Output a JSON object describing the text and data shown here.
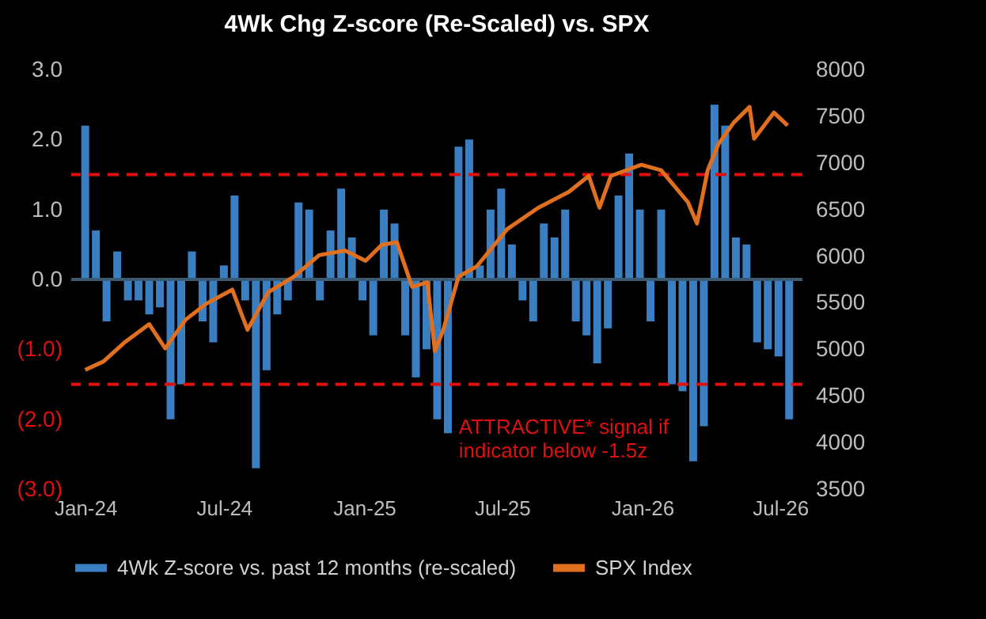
{
  "chart_data": {
    "type": "bar",
    "title": "4Wk Chg Z-score (Re-Scaled) vs. SPX",
    "xlim": [
      "2023-12-24",
      "2026-07-20"
    ],
    "xticks": [
      {
        "value": "2024-01-01",
        "label": "Jan-24"
      },
      {
        "value": "2024-07-01",
        "label": "Jul-24"
      },
      {
        "value": "2025-01-01",
        "label": "Jan-25"
      },
      {
        "value": "2025-07-01",
        "label": "Jul-25"
      },
      {
        "value": "2026-01-01",
        "label": "Jan-26"
      },
      {
        "value": "2026-07-01",
        "label": "Jul-26"
      }
    ],
    "ylim": [
      -3,
      3
    ],
    "yticks": [
      {
        "value": 3,
        "label": "3.0"
      },
      {
        "value": 2,
        "label": "2.0"
      },
      {
        "value": 1,
        "label": "1.0"
      },
      {
        "value": 0,
        "label": "0.0"
      },
      {
        "value": -1,
        "label": "(1.0)"
      },
      {
        "value": -2,
        "label": "(2.0)"
      },
      {
        "value": -3,
        "label": "(3.0)"
      }
    ],
    "y2lim": [
      3500,
      8000
    ],
    "y2ticks": [
      3500,
      4000,
      4500,
      5000,
      5500,
      6000,
      6500,
      7000,
      7500,
      8000
    ],
    "series": [
      {
        "name": "4Wk Z-score vs. past 12 months (re-scaled)",
        "color": "#3a7fc1",
        "x": [
          "2024-01-01",
          "2024-01-15",
          "2024-01-29",
          "2024-02-12",
          "2024-02-26",
          "2024-03-11",
          "2024-03-25",
          "2024-04-08",
          "2024-04-22",
          "2024-05-06",
          "2024-05-20",
          "2024-06-03",
          "2024-06-17",
          "2024-07-01",
          "2024-07-15",
          "2024-07-29",
          "2024-08-12",
          "2024-08-26",
          "2024-09-09",
          "2024-09-23",
          "2024-10-07",
          "2024-10-21",
          "2024-11-04",
          "2024-11-18",
          "2024-12-02",
          "2024-12-16",
          "2024-12-30",
          "2025-01-13",
          "2025-01-27",
          "2025-02-10",
          "2025-02-24",
          "2025-03-10",
          "2025-03-24",
          "2025-04-07",
          "2025-04-21",
          "2025-05-05",
          "2025-05-19",
          "2025-06-02",
          "2025-06-16",
          "2025-06-30",
          "2025-07-14",
          "2025-07-28",
          "2025-08-11",
          "2025-08-25",
          "2025-09-08",
          "2025-09-22",
          "2025-10-06",
          "2025-10-20",
          "2025-11-03",
          "2025-11-17",
          "2025-12-01",
          "2025-12-15",
          "2025-12-29",
          "2026-01-12",
          "2026-01-26",
          "2026-02-09",
          "2026-02-23",
          "2026-03-09",
          "2026-03-23",
          "2026-04-06",
          "2026-04-20",
          "2026-05-04",
          "2026-05-18",
          "2026-06-01",
          "2026-06-15",
          "2026-06-29",
          "2026-07-13"
        ],
        "values": [
          2.2,
          0.7,
          -0.6,
          0.4,
          -0.3,
          -0.3,
          -0.5,
          -0.4,
          -2.0,
          -1.5,
          0.4,
          -0.6,
          -0.9,
          0.2,
          1.2,
          -0.3,
          -2.7,
          -1.3,
          -0.5,
          -0.3,
          1.1,
          1.0,
          -0.3,
          0.7,
          1.3,
          0.6,
          -0.3,
          -0.8,
          1.0,
          0.8,
          -0.8,
          -1.4,
          -1.0,
          -2.0,
          -2.2,
          1.9,
          2.0,
          0.2,
          1.0,
          1.3,
          0.5,
          -0.3,
          -0.6,
          0.8,
          0.6,
          1.0,
          -0.6,
          -0.8,
          -1.2,
          -0.7,
          1.2,
          1.8,
          1.0,
          -0.6,
          1.0,
          -1.5,
          -1.6,
          -2.6,
          -2.1,
          2.5,
          2.2,
          0.6,
          0.5,
          -0.9,
          -1.0,
          -1.1,
          -2.0
        ]
      },
      {
        "name": "SPX Index",
        "type": "line",
        "axis": "y2",
        "color": "#e07020",
        "x": [
          "2024-01-01",
          "2024-01-25",
          "2024-02-21",
          "2024-03-25",
          "2024-04-15",
          "2024-05-12",
          "2024-06-08",
          "2024-07-12",
          "2024-08-01",
          "2024-08-28",
          "2024-10-01",
          "2024-11-03",
          "2024-12-07",
          "2025-01-03",
          "2025-01-24",
          "2025-02-13",
          "2025-03-05",
          "2025-03-25",
          "2025-04-04",
          "2025-04-15",
          "2025-05-05",
          "2025-05-29",
          "2025-07-08",
          "2025-08-18",
          "2025-09-27",
          "2025-10-23",
          "2025-11-06",
          "2025-11-21",
          "2025-12-31",
          "2026-01-26",
          "2026-03-02",
          "2026-03-14",
          "2026-03-28",
          "2026-04-11",
          "2026-05-01",
          "2026-05-22",
          "2026-05-28",
          "2026-06-23",
          "2026-07-11"
        ],
        "values": [
          4780,
          4870,
          5070,
          5270,
          5010,
          5320,
          5490,
          5640,
          5210,
          5610,
          5780,
          6010,
          6060,
          5950,
          6120,
          6150,
          5670,
          5720,
          4980,
          5210,
          5780,
          5890,
          6290,
          6520,
          6690,
          6860,
          6520,
          6860,
          6980,
          6920,
          6580,
          6350,
          6920,
          7200,
          7430,
          7600,
          7260,
          7540,
          7400
        ]
      }
    ],
    "ref_lines": [
      {
        "axis": "y",
        "value": 0,
        "color": "#3d5a73",
        "line_style": "solid"
      },
      {
        "axis": "y",
        "value": 1.5,
        "color": "#e01010",
        "line_style": "dashed"
      },
      {
        "axis": "y",
        "value": -1.5,
        "color": "#e01010",
        "line_style": "dashed"
      }
    ],
    "annotations": [
      "ATTRACTIVE*  signal if\nindicator below  -1.5z"
    ],
    "grid": false,
    "legend": "bottom"
  }
}
